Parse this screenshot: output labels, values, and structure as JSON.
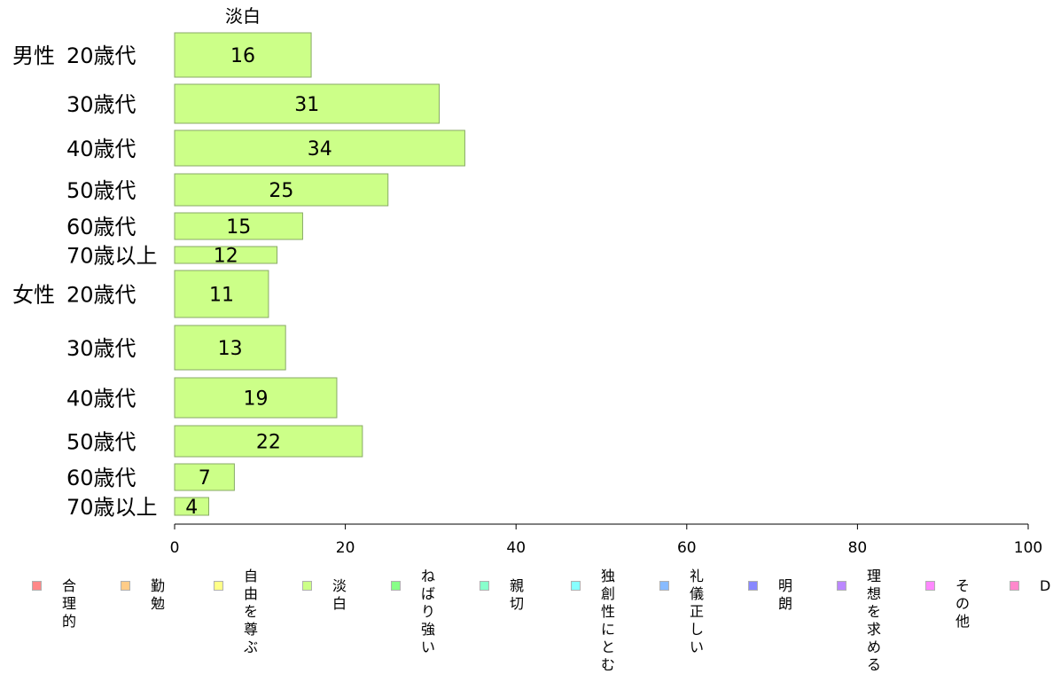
{
  "chart_data": {
    "type": "bar",
    "orientation": "horizontal",
    "column_header": "淡白",
    "groups": [
      {
        "label": "男性",
        "rows": [
          "20歳代",
          "30歳代",
          "40歳代",
          "50歳代",
          "60歳代",
          "70歳以上"
        ]
      },
      {
        "label": "女性",
        "rows": [
          "20歳代",
          "30歳代",
          "40歳代",
          "50歳代",
          "60歳代",
          "70歳以上"
        ]
      }
    ],
    "series": [
      {
        "name": "淡白",
        "values": [
          16,
          31,
          34,
          25,
          15,
          12,
          11,
          13,
          19,
          22,
          7,
          4
        ]
      }
    ],
    "xlim": [
      0,
      100
    ],
    "xticks": [
      "0",
      "20",
      "40",
      "60",
      "80",
      "100"
    ],
    "bar_color": "#ccff88",
    "bar_border": "#88aa66",
    "legend": [
      {
        "label": "合理的",
        "color": "#ff8888"
      },
      {
        "label": "勤勉",
        "color": "#ffcc88"
      },
      {
        "label": "自由を\n尊ぶ",
        "color": "#ffff88"
      },
      {
        "label": "淡白",
        "color": "#ccff88"
      },
      {
        "label": "ねばり\n強い",
        "color": "#88ff88"
      },
      {
        "label": "親切",
        "color": "#88ffcc"
      },
      {
        "label": "独創性\nにとむ",
        "color": "#88ffff"
      },
      {
        "label": "礼儀\n正しい",
        "color": "#88bbff"
      },
      {
        "label": "明朗",
        "color": "#8888ff"
      },
      {
        "label": "理想を\n求める",
        "color": "#bb88ff"
      },
      {
        "label": "その他",
        "color": "#ff88ff"
      },
      {
        "label": "D",
        "color": "#ff88cc"
      }
    ]
  }
}
